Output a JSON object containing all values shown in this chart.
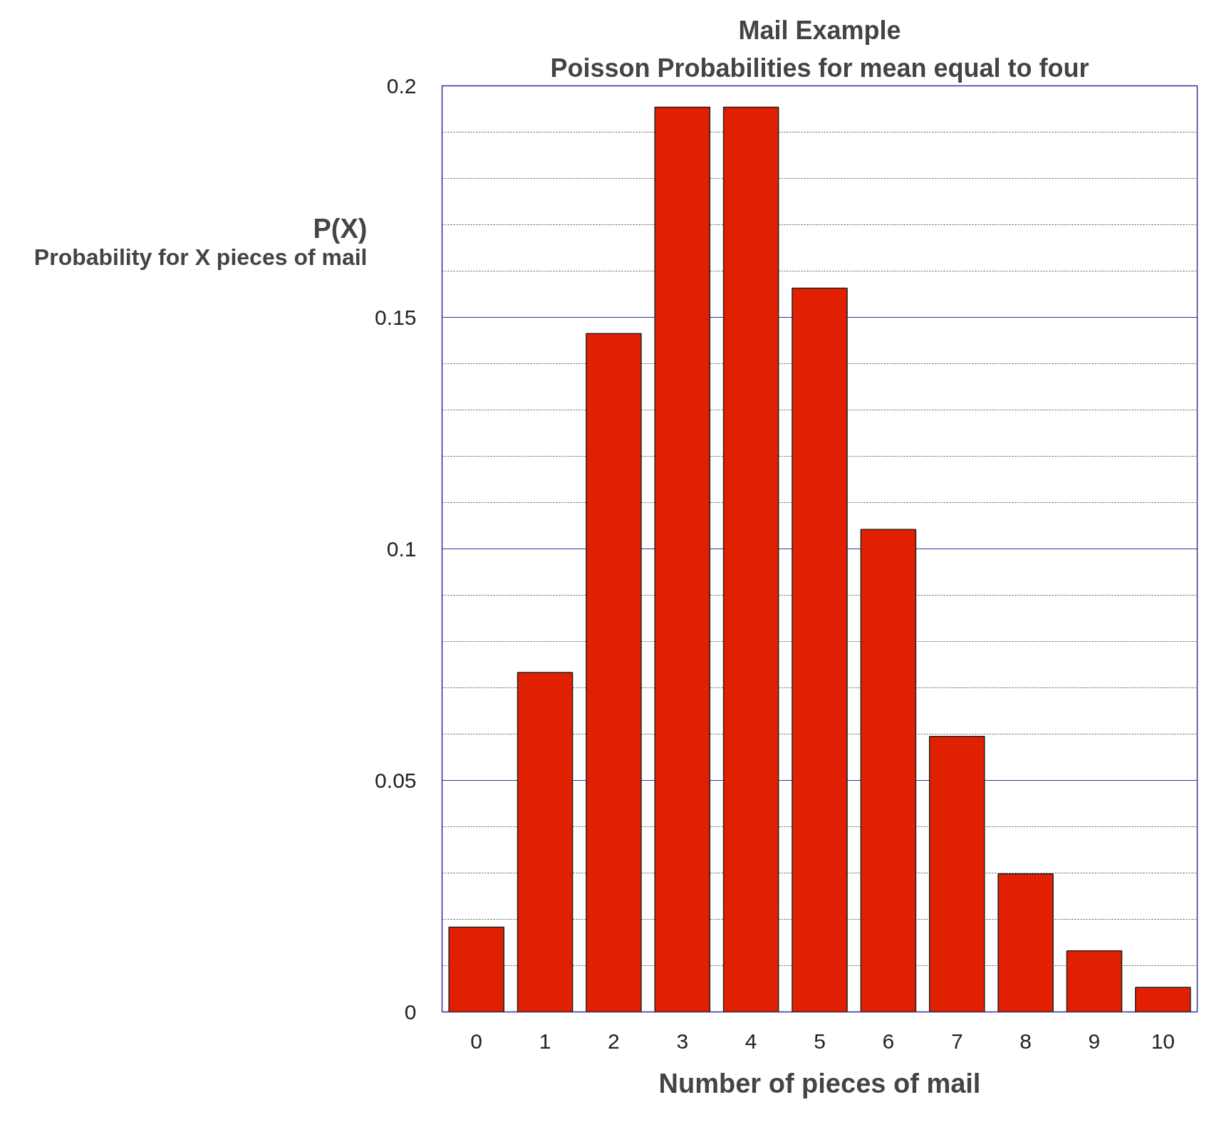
{
  "chart_data": {
    "type": "bar",
    "title": "Mail Example",
    "subtitle": "Poisson Probabilities for mean equal to four",
    "xlabel": "Number of pieces of mail",
    "ylabel": "P(X)\nProbability for X pieces of mail",
    "categories": [
      "0",
      "1",
      "2",
      "3",
      "4",
      "5",
      "6",
      "7",
      "8",
      "9",
      "10"
    ],
    "values": [
      0.0183,
      0.0733,
      0.1465,
      0.1954,
      0.1954,
      0.1563,
      0.1042,
      0.0595,
      0.0298,
      0.0132,
      0.0053
    ],
    "color": "#e02000",
    "ylim": [
      0,
      0.2
    ],
    "yticks": [
      0,
      0.05,
      0.1,
      0.15,
      0.2
    ],
    "grid": "y"
  }
}
